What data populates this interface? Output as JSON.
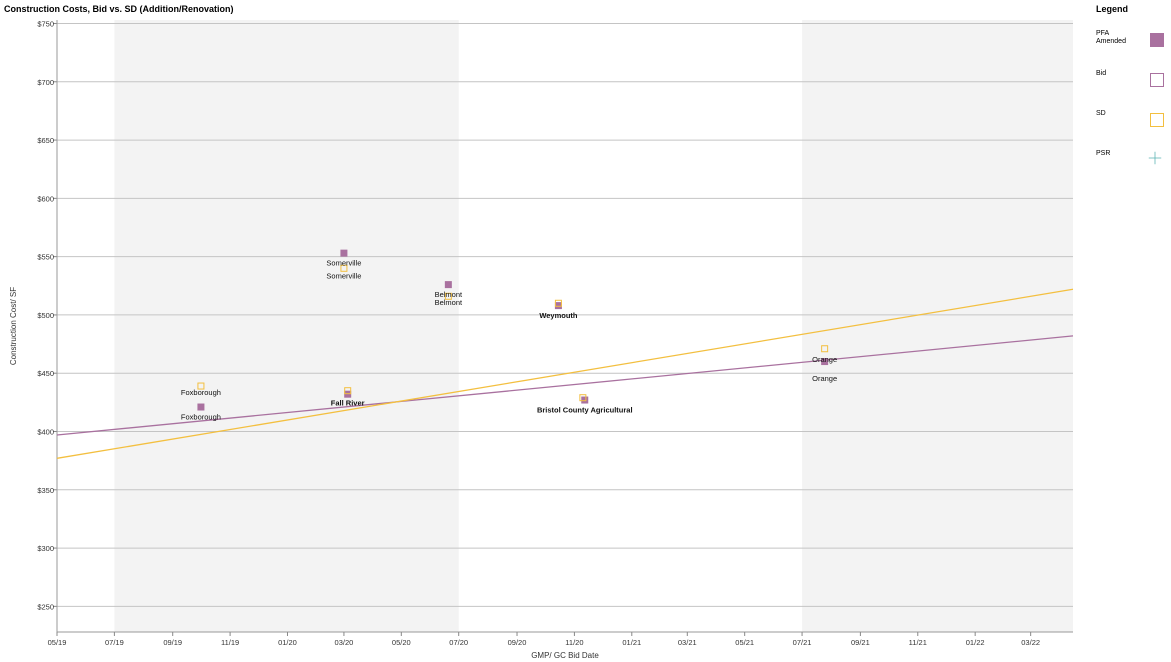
{
  "chart_data": {
    "type": "scatter",
    "title": "Construction Costs, Bid vs. SD (Addition/Renovation)",
    "xlabel": "GMP/ GC Bid Date",
    "ylabel": "Construction Cost/ SF",
    "ylim": [
      228,
      753
    ],
    "xlim": [
      "2019-05-01",
      "2022-04-15"
    ],
    "y_ticks": [
      {
        "value": 750,
        "label": "$750"
      },
      {
        "value": 700,
        "label": "$700"
      },
      {
        "value": 650,
        "label": "$650"
      },
      {
        "value": 600,
        "label": "$600"
      },
      {
        "value": 550,
        "label": "$550"
      },
      {
        "value": 500,
        "label": "$500"
      },
      {
        "value": 450,
        "label": "$450"
      },
      {
        "value": 400,
        "label": "$400"
      },
      {
        "value": 350,
        "label": "$350"
      },
      {
        "value": 300,
        "label": "$300"
      },
      {
        "value": 250,
        "label": "$250"
      }
    ],
    "x_ticks": [
      {
        "value": "2019-05-01",
        "label": "05/19"
      },
      {
        "value": "2019-07-01",
        "label": "07/19"
      },
      {
        "value": "2019-09-01",
        "label": "09/19"
      },
      {
        "value": "2019-11-01",
        "label": "11/19"
      },
      {
        "value": "2020-01-01",
        "label": "01/20"
      },
      {
        "value": "2020-03-01",
        "label": "03/20"
      },
      {
        "value": "2020-05-01",
        "label": "05/20"
      },
      {
        "value": "2020-07-01",
        "label": "07/20"
      },
      {
        "value": "2020-09-01",
        "label": "09/20"
      },
      {
        "value": "2020-11-01",
        "label": "11/20"
      },
      {
        "value": "2021-01-01",
        "label": "01/21"
      },
      {
        "value": "2021-03-01",
        "label": "03/21"
      },
      {
        "value": "2021-05-01",
        "label": "05/21"
      },
      {
        "value": "2021-07-01",
        "label": "07/21"
      },
      {
        "value": "2021-09-01",
        "label": "09/21"
      },
      {
        "value": "2021-11-01",
        "label": "11/21"
      },
      {
        "value": "2022-01-01",
        "label": "01/22"
      },
      {
        "value": "2022-03-01",
        "label": "03/22"
      }
    ],
    "shaded_bands": [
      {
        "from": "2019-07-01",
        "to": "2020-07-01"
      },
      {
        "from": "2021-07-01",
        "to": "2022-04-15"
      }
    ],
    "legend": {
      "title": "Legend",
      "placement": "right",
      "items": [
        {
          "label": "PFA Amended",
          "style": "filled-square",
          "color": "#a9719f"
        },
        {
          "label": "Bid",
          "style": "hollow-square",
          "color": "#a9719f"
        },
        {
          "label": "SD",
          "style": "hollow-square",
          "color": "#f3bf3f"
        },
        {
          "label": "PSR",
          "style": "plus",
          "color": "#5cb3b3"
        }
      ]
    },
    "series": [
      {
        "name": "PFA Amended",
        "style": "filled-square",
        "color": "#a9719f",
        "points": [
          {
            "x": "2019-10-01",
            "y": 421
          },
          {
            "x": "2020-03-01",
            "y": 553
          },
          {
            "x": "2020-06-20",
            "y": 526
          },
          {
            "x": "2020-10-15",
            "y": 508
          },
          {
            "x": "2020-11-12",
            "y": 427
          },
          {
            "x": "2021-07-25",
            "y": 460
          },
          {
            "x": "2020-03-05",
            "y": 432
          }
        ]
      },
      {
        "name": "SD",
        "style": "hollow-square",
        "color": "#f3bf3f",
        "points": [
          {
            "x": "2019-10-01",
            "y": 439
          },
          {
            "x": "2020-03-01",
            "y": 540
          },
          {
            "x": "2020-06-20",
            "y": 516
          },
          {
            "x": "2020-10-15",
            "y": 510
          },
          {
            "x": "2020-11-10",
            "y": 429
          },
          {
            "x": "2021-07-25",
            "y": 471
          },
          {
            "x": "2020-03-05",
            "y": 435
          }
        ]
      }
    ],
    "trend_lines": [
      {
        "series": "PFA Amended",
        "color": "#a9719f",
        "from": {
          "x": "2019-05-01",
          "y": 397
        },
        "to": {
          "x": "2022-04-15",
          "y": 482
        }
      },
      {
        "series": "SD",
        "color": "#f3bf3f",
        "from": {
          "x": "2019-05-01",
          "y": 377
        },
        "to": {
          "x": "2022-04-15",
          "y": 522
        }
      }
    ],
    "annotations": [
      {
        "text": "Foxborough",
        "x": "2019-10-01",
        "y": 434,
        "bold": false
      },
      {
        "text": "Foxborough",
        "x": "2019-10-01",
        "y": 413,
        "bold": false
      },
      {
        "text": "Somerville",
        "x": "2020-03-01",
        "y": 545,
        "bold": false
      },
      {
        "text": "Somerville",
        "x": "2020-03-01",
        "y": 534,
        "bold": false
      },
      {
        "text": "Belmont",
        "x": "2020-06-20",
        "y": 518,
        "bold": false
      },
      {
        "text": "Belmont",
        "x": "2020-06-20",
        "y": 511,
        "bold": false
      },
      {
        "text": "Weymouth",
        "x": "2020-10-15",
        "y": 500,
        "bold": true
      },
      {
        "text": "Fall River",
        "x": "2020-03-05",
        "y": 425,
        "bold": true
      },
      {
        "text": "Bristol County Agricultural",
        "x": "2020-11-12",
        "y": 419,
        "bold": true
      },
      {
        "text": "Orange",
        "x": "2021-07-25",
        "y": 462,
        "bold": false
      },
      {
        "text": "Orange",
        "x": "2021-07-25",
        "y": 446,
        "bold": false
      }
    ]
  }
}
